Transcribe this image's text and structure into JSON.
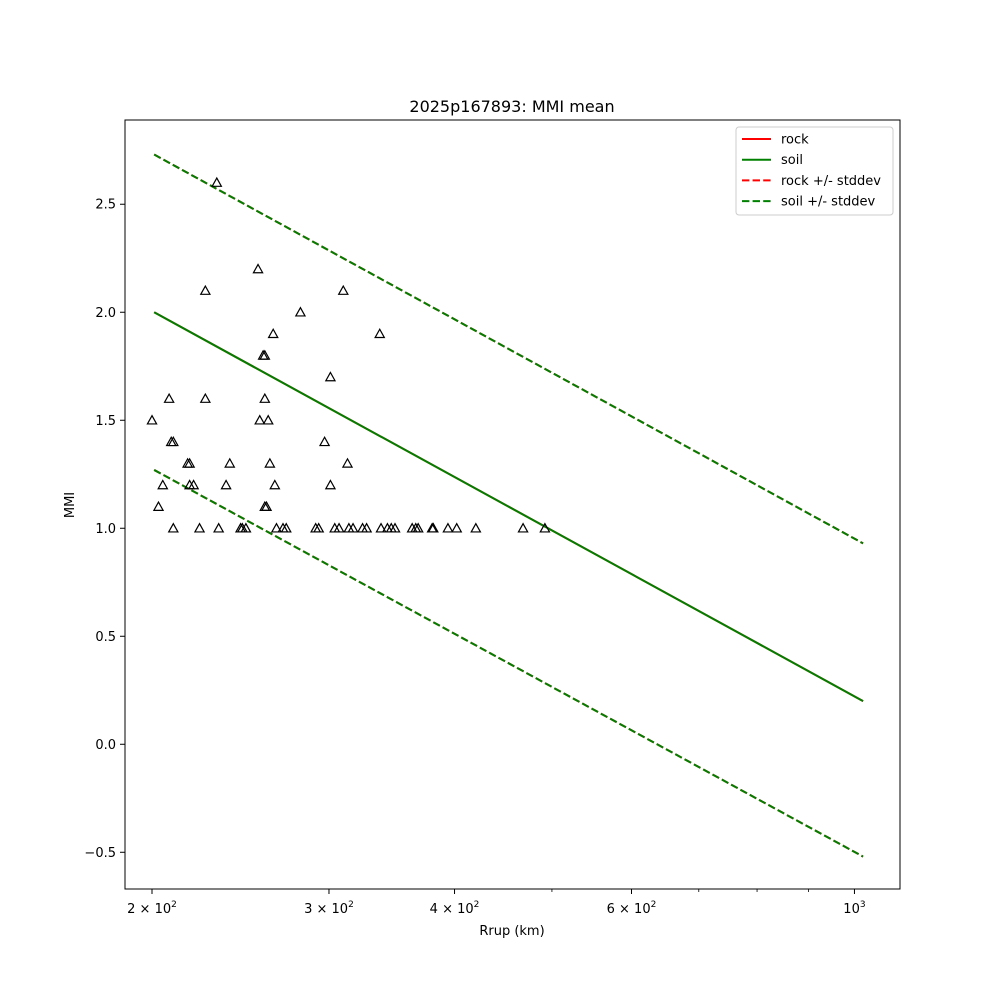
{
  "chart_data": {
    "type": "scatter",
    "title": "2025p167893: MMI mean",
    "xlabel": "Rrup (km)",
    "ylabel": "MMI",
    "x_scale": "log",
    "xlim": [
      188,
      1110
    ],
    "ylim": [
      -0.67,
      2.89
    ],
    "grid": false,
    "legend_position": "top-right",
    "x_ticks": [
      {
        "value": 200,
        "base": "2 × 10",
        "exp": "2"
      },
      {
        "value": 300,
        "base": "3 × 10",
        "exp": "2"
      },
      {
        "value": 400,
        "base": "4 × 10",
        "exp": "2"
      },
      {
        "value": 600,
        "base": "6 × 10",
        "exp": "2"
      },
      {
        "value": 1000,
        "base": "10",
        "exp": "3"
      }
    ],
    "x_minor_ticks": [
      500,
      700,
      800,
      900
    ],
    "y_ticks": [
      {
        "value": -0.5,
        "label": "−0.5"
      },
      {
        "value": 0.0,
        "label": "0.0"
      },
      {
        "value": 0.5,
        "label": "0.5"
      },
      {
        "value": 1.0,
        "label": "1.0"
      },
      {
        "value": 1.5,
        "label": "1.5"
      },
      {
        "value": 2.0,
        "label": "2.0"
      },
      {
        "value": 2.5,
        "label": "2.5"
      }
    ],
    "lines": [
      {
        "name": "rock",
        "color": "#ff0000",
        "dash": false,
        "points": [
          [
            201,
            2.0
          ],
          [
            1020,
            0.2
          ]
        ]
      },
      {
        "name": "soil",
        "color": "#008000",
        "dash": false,
        "points": [
          [
            201,
            2.0
          ],
          [
            1020,
            0.2
          ]
        ]
      },
      {
        "name": "rock +/- stddev",
        "color": "#ff0000",
        "dash": true,
        "segments": [
          [
            [
              201,
              2.73
            ],
            [
              1020,
              0.93
            ]
          ],
          [
            [
              201,
              1.27
            ],
            [
              1020,
              -0.52
            ]
          ]
        ]
      },
      {
        "name": "soil +/- stddev",
        "color": "#008000",
        "dash": true,
        "segments": [
          [
            [
              201,
              2.73
            ],
            [
              1020,
              0.93
            ]
          ],
          [
            [
              201,
              1.27
            ],
            [
              1020,
              -0.52
            ]
          ]
        ]
      }
    ],
    "observations": {
      "marker": "triangle",
      "color": "#000000",
      "points": [
        [
          200,
          1.5
        ],
        [
          203,
          1.1
        ],
        [
          205,
          1.2
        ],
        [
          208,
          1.6
        ],
        [
          209,
          1.4
        ],
        [
          210,
          1.4
        ],
        [
          210,
          1.0
        ],
        [
          217,
          1.3
        ],
        [
          218,
          1.3
        ],
        [
          218,
          1.2
        ],
        [
          220,
          1.2
        ],
        [
          223,
          1.0
        ],
        [
          226,
          2.1
        ],
        [
          226,
          1.6
        ],
        [
          232,
          2.6
        ],
        [
          233,
          1.0
        ],
        [
          237,
          1.2
        ],
        [
          239,
          1.3
        ],
        [
          245,
          1.0
        ],
        [
          246,
          1.0
        ],
        [
          248,
          1.0
        ],
        [
          255,
          2.2
        ],
        [
          256,
          1.5
        ],
        [
          258,
          1.8
        ],
        [
          259,
          1.8
        ],
        [
          259,
          1.6
        ],
        [
          259,
          1.1
        ],
        [
          260,
          1.1
        ],
        [
          261,
          1.5
        ],
        [
          262,
          1.3
        ],
        [
          264,
          1.9
        ],
        [
          265,
          1.2
        ],
        [
          266,
          1.0
        ],
        [
          270,
          1.0
        ],
        [
          272,
          1.0
        ],
        [
          281,
          2.0
        ],
        [
          291,
          1.0
        ],
        [
          293,
          1.0
        ],
        [
          297,
          1.4
        ],
        [
          301,
          1.7
        ],
        [
          301,
          1.2
        ],
        [
          304,
          1.0
        ],
        [
          307,
          1.0
        ],
        [
          310,
          2.1
        ],
        [
          313,
          1.3
        ],
        [
          314,
          1.0
        ],
        [
          317,
          1.0
        ],
        [
          324,
          1.0
        ],
        [
          327,
          1.0
        ],
        [
          337,
          1.9
        ],
        [
          338,
          1.0
        ],
        [
          343,
          1.0
        ],
        [
          346,
          1.0
        ],
        [
          349,
          1.0
        ],
        [
          363,
          1.0
        ],
        [
          366,
          1.0
        ],
        [
          368,
          1.0
        ],
        [
          380,
          1.0
        ],
        [
          381,
          1.0
        ],
        [
          394,
          1.0
        ],
        [
          402,
          1.0
        ],
        [
          420,
          1.0
        ],
        [
          468,
          1.0
        ],
        [
          492,
          1.0
        ]
      ]
    }
  }
}
